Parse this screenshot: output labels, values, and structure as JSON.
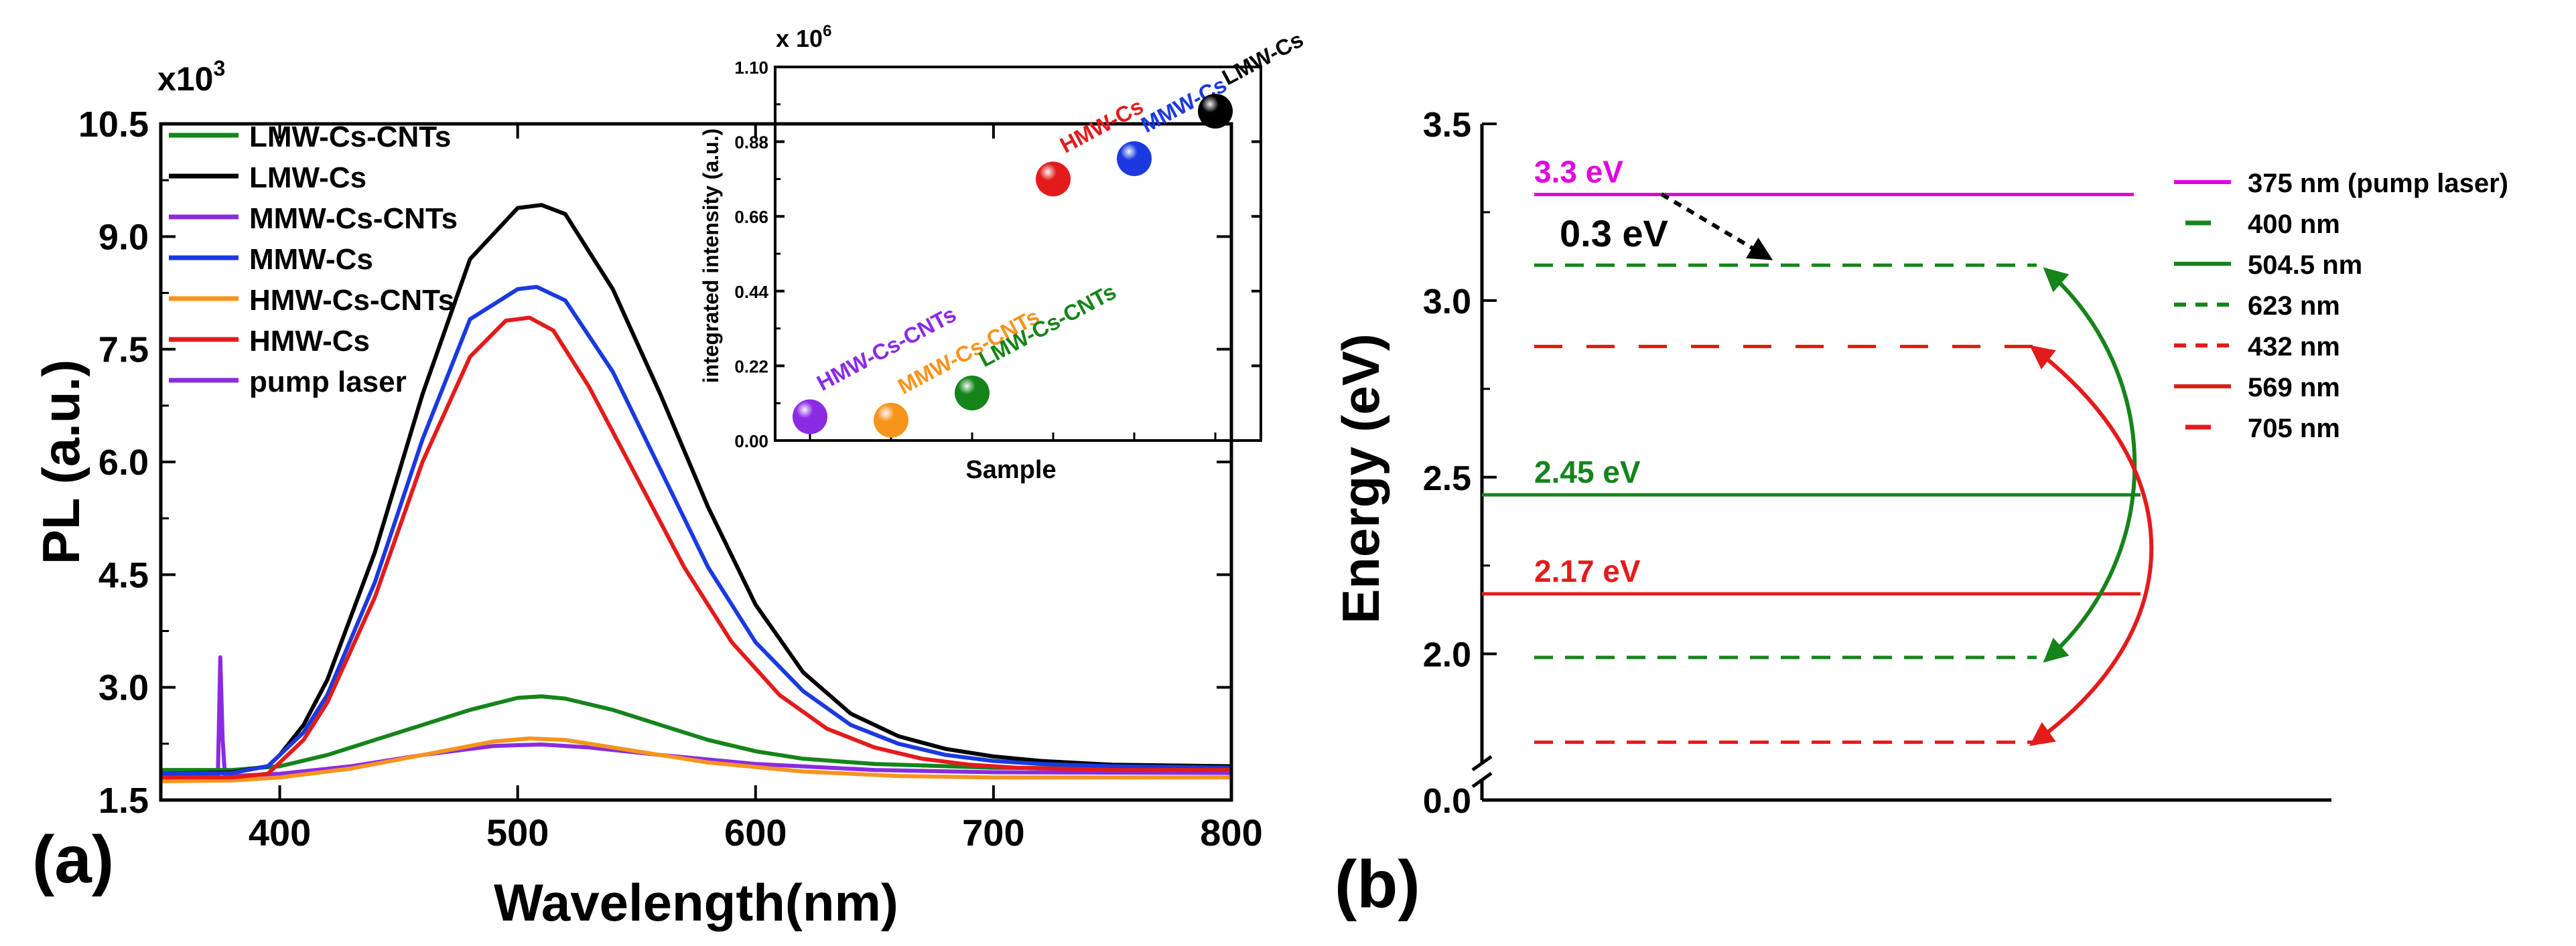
{
  "chart_data": [
    {
      "type": "line",
      "panel_label": "(a)",
      "title": "",
      "xlabel": "Wavelength(nm)",
      "ylabel": "PL (a.u.)",
      "y_multiplier": "x10",
      "y_multiplier_exp": "3",
      "xlim": [
        350,
        800
      ],
      "ylim": [
        1.5,
        10.5
      ],
      "xticks": [
        400,
        500,
        600,
        700,
        800
      ],
      "yticks": [
        1.5,
        3.0,
        4.5,
        6.0,
        7.5,
        9.0,
        10.5
      ],
      "legend_position": "top-left",
      "series": [
        {
          "name": "LMW-Cs-CNTs",
          "color": "#15841a",
          "x": [
            350,
            380,
            400,
            420,
            440,
            460,
            480,
            500,
            510,
            520,
            540,
            560,
            580,
            600,
            620,
            650,
            700,
            750,
            800
          ],
          "y": [
            1.9,
            1.9,
            1.95,
            2.1,
            2.3,
            2.5,
            2.7,
            2.86,
            2.88,
            2.85,
            2.7,
            2.5,
            2.3,
            2.15,
            2.05,
            1.98,
            1.93,
            1.92,
            1.92
          ]
        },
        {
          "name": "LMW-Cs",
          "color": "#000000",
          "x": [
            350,
            380,
            395,
            400,
            410,
            420,
            440,
            460,
            480,
            500,
            510,
            520,
            540,
            560,
            580,
            600,
            620,
            640,
            660,
            680,
            700,
            720,
            750,
            800
          ],
          "y": [
            1.85,
            1.87,
            1.95,
            2.1,
            2.5,
            3.1,
            4.8,
            6.9,
            8.7,
            9.38,
            9.42,
            9.3,
            8.3,
            6.9,
            5.4,
            4.1,
            3.2,
            2.65,
            2.35,
            2.18,
            2.08,
            2.02,
            1.97,
            1.95
          ]
        },
        {
          "name": "MMW-Cs-CNTs",
          "color": "#8a2be2",
          "x": [
            350,
            374,
            375,
            376,
            377,
            378,
            380,
            400,
            430,
            460,
            490,
            510,
            530,
            560,
            600,
            650,
            700,
            800
          ],
          "y": [
            1.82,
            1.82,
            3.4,
            2.3,
            1.82,
            1.82,
            1.82,
            1.85,
            1.95,
            2.1,
            2.22,
            2.24,
            2.2,
            2.1,
            1.98,
            1.9,
            1.87,
            1.86
          ]
        },
        {
          "name": "MMW-Cs",
          "color": "#1a3adf",
          "x": [
            350,
            380,
            395,
            400,
            410,
            420,
            440,
            460,
            480,
            500,
            508,
            520,
            540,
            560,
            580,
            600,
            620,
            640,
            660,
            680,
            700,
            720,
            750,
            800
          ],
          "y": [
            1.85,
            1.86,
            1.95,
            2.1,
            2.4,
            2.9,
            4.4,
            6.3,
            7.9,
            8.3,
            8.33,
            8.15,
            7.2,
            5.9,
            4.6,
            3.6,
            2.95,
            2.5,
            2.25,
            2.1,
            2.02,
            1.98,
            1.95,
            1.93
          ]
        },
        {
          "name": "HMW-Cs-CNTs",
          "color": "#f7941d",
          "x": [
            350,
            380,
            400,
            430,
            460,
            490,
            505,
            520,
            550,
            580,
            620,
            660,
            700,
            750,
            800
          ],
          "y": [
            1.75,
            1.76,
            1.8,
            1.92,
            2.1,
            2.28,
            2.32,
            2.3,
            2.15,
            2.0,
            1.88,
            1.82,
            1.8,
            1.8,
            1.8
          ]
        },
        {
          "name": "HMW-Cs",
          "color": "#e31b1b",
          "x": [
            350,
            380,
            395,
            400,
            410,
            420,
            440,
            460,
            480,
            495,
            505,
            515,
            530,
            550,
            570,
            590,
            610,
            630,
            650,
            670,
            690,
            710,
            750,
            800
          ],
          "y": [
            1.8,
            1.8,
            1.85,
            2.0,
            2.3,
            2.8,
            4.2,
            6.0,
            7.4,
            7.88,
            7.92,
            7.75,
            7.0,
            5.8,
            4.6,
            3.6,
            2.9,
            2.45,
            2.2,
            2.05,
            1.97,
            1.93,
            1.9,
            1.9
          ]
        },
        {
          "name": "pump laser",
          "color": "#8a2be2",
          "legend_only": true
        }
      ]
    },
    {
      "type": "scatter",
      "title": "",
      "xlabel": "Sample",
      "ylabel": "integrated intensity (a.u.)",
      "y_multiplier": "x 10",
      "y_multiplier_exp": "6",
      "ylim": [
        0,
        1.1
      ],
      "yticks": [
        0.0,
        0.22,
        0.44,
        0.66,
        0.88,
        1.1
      ],
      "points": [
        {
          "label": "HMW-Cs-CNTs",
          "x": 1,
          "y": 0.07,
          "color": "#8a2be2"
        },
        {
          "label": "MMW-Cs-CNTs",
          "x": 2,
          "y": 0.06,
          "color": "#f7941d"
        },
        {
          "label": "LMW-Cs-CNTs",
          "x": 3,
          "y": 0.14,
          "color": "#15841a"
        },
        {
          "label": "HMW-Cs",
          "x": 4,
          "y": 0.77,
          "color": "#e31b1b"
        },
        {
          "label": "MMW-Cs",
          "x": 5,
          "y": 0.83,
          "color": "#1a3adf"
        },
        {
          "label": "LMW-Cs",
          "x": 6,
          "y": 0.97,
          "color": "#000000"
        }
      ]
    },
    {
      "type": "diagram",
      "panel_label": "(b)",
      "title": "",
      "ylabel": "Energy (eV)",
      "ylim": [
        0,
        3.5
      ],
      "yticks": [
        0.0,
        2.0,
        2.5,
        3.0,
        3.5
      ],
      "axis_break": true,
      "levels": [
        {
          "energy": 3.3,
          "style": "solid",
          "color": "#e000e0",
          "label": "3.3 eV"
        },
        {
          "energy": 3.1,
          "style": "dashed",
          "color": "#15841a"
        },
        {
          "energy": 2.87,
          "style": "dashed-long",
          "color": "#e31b1b"
        },
        {
          "energy": 2.45,
          "style": "solid",
          "color": "#15841a",
          "label": "2.45 eV"
        },
        {
          "energy": 2.17,
          "style": "solid",
          "color": "#e31b1b",
          "label": "2.17 eV"
        },
        {
          "energy": 1.99,
          "style": "dashed",
          "color": "#15841a"
        },
        {
          "energy": 1.75,
          "style": "dashed",
          "color": "#e31b1b"
        }
      ],
      "annotation": "0.3 eV",
      "legend": [
        {
          "label": "375 nm (pump laser)",
          "color": "#e000e0",
          "style": "solid"
        },
        {
          "label": "400 nm",
          "color": "#15841a",
          "style": "dashed-long"
        },
        {
          "label": "504.5 nm",
          "color": "#15841a",
          "style": "solid"
        },
        {
          "label": "623 nm",
          "color": "#15841a",
          "style": "dashed"
        },
        {
          "label": "432 nm",
          "color": "#e31b1b",
          "style": "dashed"
        },
        {
          "label": "569 nm",
          "color": "#e31b1b",
          "style": "solid"
        },
        {
          "label": "705 nm",
          "color": "#e31b1b",
          "style": "dashed-long"
        }
      ]
    }
  ]
}
